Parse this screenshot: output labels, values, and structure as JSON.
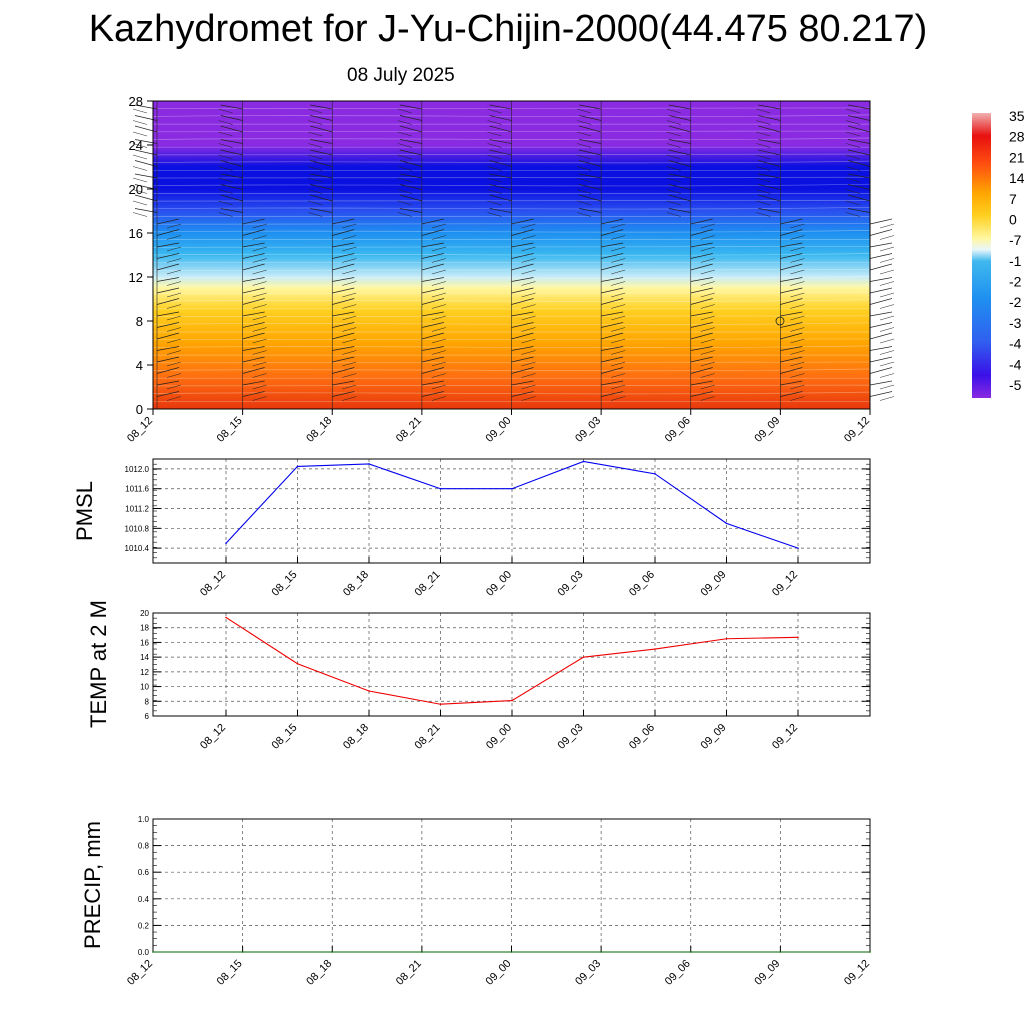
{
  "title": "Kazhydromet for J-Yu-Chijin-2000(44.475 80.217)",
  "subtitle": "08 July 2025",
  "chart_data": [
    {
      "type": "heatmap",
      "y_ticks": [
        "0",
        "4",
        "8",
        "12",
        "16",
        "20",
        "24",
        "28"
      ],
      "x_ticks": [
        "08_12",
        "08_15",
        "08_18",
        "08_21",
        "09_00",
        "09_03",
        "09_06",
        "09_09",
        "09_12"
      ],
      "ylim": [
        0,
        28
      ],
      "colorbar_labels": [
        "35",
        "28",
        "21",
        "14",
        "7",
        "0",
        "-7",
        "-1",
        "-2",
        "-2",
        "-3",
        "-4",
        "-4",
        "-5"
      ],
      "temperature_profile": [
        {
          "level": 0,
          "value": 19
        },
        {
          "level": 3,
          "value": 16
        },
        {
          "level": 6,
          "value": 9
        },
        {
          "level": 9,
          "value": 3
        },
        {
          "level": 11,
          "value": -5
        },
        {
          "level": 12,
          "value": -14
        },
        {
          "level": 14,
          "value": -25
        },
        {
          "level": 16,
          "value": -32
        },
        {
          "level": 18,
          "value": -42
        },
        {
          "level": 20,
          "value": -52
        },
        {
          "level": 22,
          "value": -47
        },
        {
          "level": 24,
          "value": -57
        },
        {
          "level": 28,
          "value": -57
        }
      ],
      "colors": {
        "high": "#e8380d",
        "mid_warm": "#ffa500",
        "zero": "#fff7a0",
        "cold": "#29a0f0",
        "very_cold": "#0010e0",
        "top": "#8a2be2"
      }
    },
    {
      "type": "line",
      "ylabel": "PMSL",
      "categories": [
        "08_12",
        "08_15",
        "08_18",
        "08_21",
        "09_00",
        "09_03",
        "09_06",
        "09_09",
        "09_12"
      ],
      "y_ticks": [
        "1010.4",
        "1010.8",
        "1011.2",
        "1011.6",
        "1012.0"
      ],
      "ylim": [
        1010.1,
        1012.2
      ],
      "series": [
        {
          "values": [
            1010.5,
            1012.05,
            1012.1,
            1011.6,
            1011.6,
            1012.15,
            1011.9,
            1010.9,
            1010.4
          ],
          "color": "#0000ee"
        }
      ],
      "grid": true
    },
    {
      "type": "line",
      "ylabel": "TEMP at 2 M",
      "categories": [
        "08_12",
        "08_15",
        "08_18",
        "08_21",
        "09_00",
        "09_03",
        "09_06",
        "09_09",
        "09_12"
      ],
      "y_ticks": [
        "6",
        "8",
        "10",
        "12",
        "14",
        "16",
        "18",
        "20"
      ],
      "ylim": [
        6,
        20
      ],
      "series": [
        {
          "values": [
            19.4,
            13.1,
            9.4,
            7.6,
            8.1,
            14.0,
            15.1,
            16.5,
            16.7
          ],
          "color": "#ee0000"
        }
      ],
      "grid": true
    },
    {
      "type": "line",
      "ylabel": "PRECIP, mm",
      "categories": [
        "08_12",
        "08_15",
        "08_18",
        "08_21",
        "09_00",
        "09_03",
        "09_06",
        "09_09",
        "09_12"
      ],
      "y_ticks": [
        "0.0",
        "0.2",
        "0.4",
        "0.6",
        "0.8",
        "1.0"
      ],
      "ylim": [
        0,
        1
      ],
      "series": [
        {
          "values": [
            0,
            0,
            0,
            0,
            0,
            0,
            0,
            0,
            0
          ],
          "color": "#006400"
        }
      ],
      "grid": true
    }
  ]
}
